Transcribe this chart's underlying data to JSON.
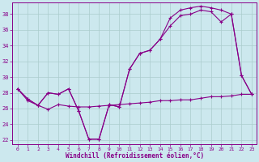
{
  "xlabel": "Windchill (Refroidissement éolien,°C)",
  "background_color": "#cce8ee",
  "grid_color": "#aacccc",
  "line_color": "#880088",
  "xlim": [
    -0.5,
    23.5
  ],
  "ylim": [
    21.5,
    39.5
  ],
  "yticks": [
    22,
    24,
    26,
    28,
    30,
    32,
    34,
    36,
    38
  ],
  "xticks": [
    0,
    1,
    2,
    3,
    4,
    5,
    6,
    7,
    8,
    9,
    10,
    11,
    12,
    13,
    14,
    15,
    16,
    17,
    18,
    19,
    20,
    21,
    22,
    23
  ],
  "series1": [
    28.5,
    27.2,
    26.4,
    28.0,
    27.8,
    28.5,
    25.7,
    22.1,
    22.1,
    26.5,
    26.2,
    31.0,
    33.0,
    33.4,
    34.8,
    36.5,
    37.8,
    38.0,
    38.5,
    38.3,
    37.0,
    38.0,
    30.2,
    27.8
  ],
  "series2": [
    28.5,
    27.2,
    26.4,
    28.0,
    27.8,
    28.5,
    25.7,
    22.1,
    22.1,
    26.5,
    26.2,
    31.0,
    33.0,
    33.4,
    34.8,
    37.5,
    38.5,
    38.8,
    39.0,
    38.8,
    38.5,
    38.0,
    30.2,
    27.8
  ],
  "series3": [
    28.5,
    27.0,
    26.4,
    25.9,
    26.5,
    26.3,
    26.2,
    26.2,
    26.3,
    26.4,
    26.5,
    26.6,
    26.7,
    26.8,
    27.0,
    27.0,
    27.1,
    27.1,
    27.3,
    27.5,
    27.5,
    27.6,
    27.8,
    27.8
  ]
}
